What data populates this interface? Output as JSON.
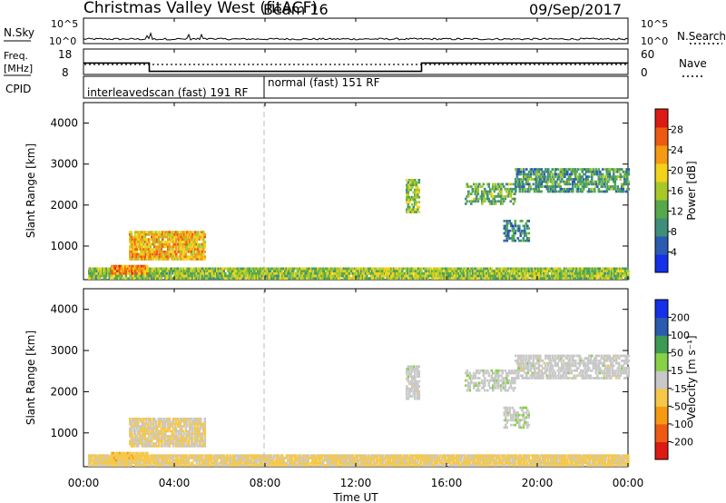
{
  "header": {
    "title": "Christmas Valley West (fitACF)",
    "beam": "Beam 16",
    "date": "09/Sep/2017"
  },
  "top_panels": {
    "nsky": {
      "label": "N.Sky",
      "ticks_left": [
        "10^5",
        "10^0"
      ],
      "ticks_right": [
        "10^5",
        "10^0"
      ],
      "right_label": "N.Search"
    },
    "freq": {
      "label_line1": "Freq.",
      "label_line2": "[MHz]",
      "ticks_left": [
        "18",
        "8"
      ],
      "ticks_right": [
        "60",
        "0"
      ],
      "right_label": "Nave",
      "freq_steps": [
        {
          "t0": 0,
          "t1": 2.9,
          "mhz": 12.5
        },
        {
          "t0": 2.9,
          "t1": 14.9,
          "mhz": 9.2
        },
        {
          "t0": 14.9,
          "t1": 24,
          "mhz": 12.5
        }
      ]
    },
    "cpid": {
      "label": "CPID",
      "segments": [
        {
          "text": "interleavedscan (fast) 191 RF"
        },
        {
          "text": "normal (fast) 151 RF"
        }
      ],
      "boundary_hour": 8.0
    }
  },
  "x_axis": {
    "ticks": [
      "00:00",
      "04:00",
      "08:00",
      "12:00",
      "16:00",
      "20:00",
      "00:00"
    ],
    "label": "Time UT"
  },
  "panels": [
    {
      "id": "power",
      "ylabel": "Slant Range [km]",
      "yticks": [
        "1000",
        "2000",
        "3000",
        "4000"
      ],
      "colorbar_label": "Power [dB]",
      "colorbar_ticks": [
        "4",
        "8",
        "12",
        "16",
        "20",
        "24",
        "28"
      ]
    },
    {
      "id": "velocity",
      "ylabel": "Slant Range [km]",
      "yticks": [
        "1000",
        "2000",
        "3000",
        "4000"
      ],
      "colorbar_label": "Velocity [m s⁻¹]",
      "colorbar_ticks": [
        "200",
        "100",
        "50",
        "15",
        "-15",
        "-50",
        "-100",
        "-200"
      ]
    }
  ],
  "chart_data": {
    "type": "heatmap",
    "title": "Christmas Valley West (fitACF) Beam 16",
    "xlabel": "Time UT",
    "ylabel": "Slant Range [km]",
    "xlim": [
      0,
      24
    ],
    "ylim": [
      180,
      4500
    ],
    "grid": false,
    "power_colors": [
      "#1530e8",
      "#2a5bb0",
      "#3f8e7a",
      "#55a94a",
      "#a8c828",
      "#f2d21a",
      "#f59a12",
      "#ee5a12",
      "#dd1a14"
    ],
    "power_range": [
      0,
      30
    ],
    "velocity_colors": [
      "#dd1a14",
      "#ee5a12",
      "#f59a12",
      "#f5c84a",
      "#c8c8c8",
      "#88d045",
      "#3d9a55",
      "#2a5bb0",
      "#1530e8"
    ],
    "velocity_range": [
      -250,
      250
    ],
    "regions": [
      {
        "name": "ground-scatter-band",
        "t0": 0.2,
        "t1": 24,
        "r0": 180,
        "r1": 450,
        "power": 14,
        "velocity": -40,
        "density": 0.9
      },
      {
        "name": "morning-echo",
        "t0": 2.0,
        "t1": 5.3,
        "r0": 650,
        "r1": 1350,
        "power": 20,
        "velocity": -30,
        "density": 0.8
      },
      {
        "name": "early-patch",
        "t0": 1.2,
        "t1": 2.8,
        "r0": 300,
        "r1": 500,
        "power": 22,
        "velocity": -60,
        "density": 0.8
      },
      {
        "name": "echo-1430",
        "t0": 14.2,
        "t1": 14.8,
        "r0": 1800,
        "r1": 2600,
        "power": 14,
        "velocity": 0,
        "density": 0.6
      },
      {
        "name": "echo-1700-2400",
        "t0": 16.8,
        "t1": 19.0,
        "r0": 2000,
        "r1": 2500,
        "power": 12,
        "velocity": 5,
        "density": 0.5
      },
      {
        "name": "echo-1830-1900",
        "t0": 18.5,
        "t1": 19.6,
        "r0": 1100,
        "r1": 1600,
        "power": 8,
        "velocity": 10,
        "density": 0.5
      },
      {
        "name": "echo-1900-2400",
        "t0": 19.0,
        "t1": 24,
        "r0": 2300,
        "r1": 2900,
        "power": 10,
        "velocity": 0,
        "density": 0.6
      }
    ]
  }
}
